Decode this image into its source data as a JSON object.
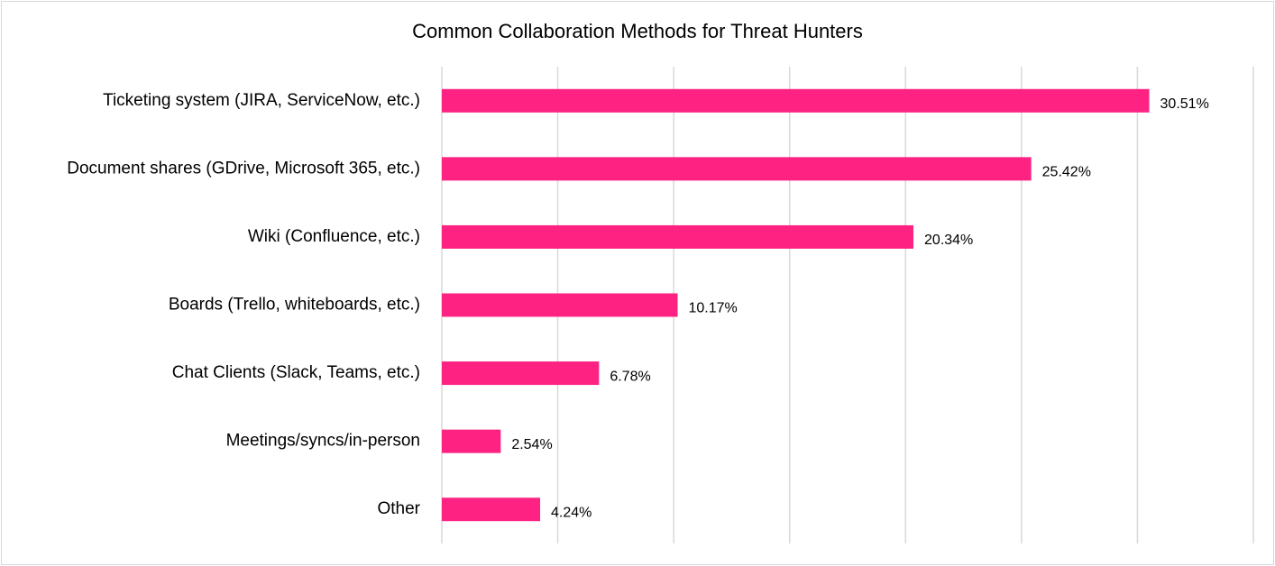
{
  "chart_data": {
    "type": "bar",
    "orientation": "horizontal",
    "title": "Common Collaboration Methods for Threat Hunters",
    "categories": [
      "Ticketing system (JIRA, ServiceNow, etc.)",
      "Document shares (GDrive, Microsoft 365, etc.)",
      "Wiki (Confluence, etc.)",
      "Boards (Trello, whiteboards, etc.)",
      "Chat Clients (Slack, Teams, etc.)",
      "Meetings/syncs/in-person",
      "Other"
    ],
    "values": [
      30.51,
      25.42,
      20.34,
      10.17,
      6.78,
      2.54,
      4.24
    ],
    "data_labels": [
      "30.51%",
      "25.42%",
      "20.34%",
      "10.17%",
      "6.78%",
      "2.54%",
      "4.24%"
    ],
    "xlim": [
      0,
      35
    ],
    "x_major_unit": 5,
    "grid": "vertical",
    "axis_tick_labels_shown": false,
    "legend": "none",
    "colors": {
      "bar": "#fe2283",
      "gridline": "#d9d9d9",
      "border": "#d9d9d9",
      "text": "#000000"
    }
  }
}
